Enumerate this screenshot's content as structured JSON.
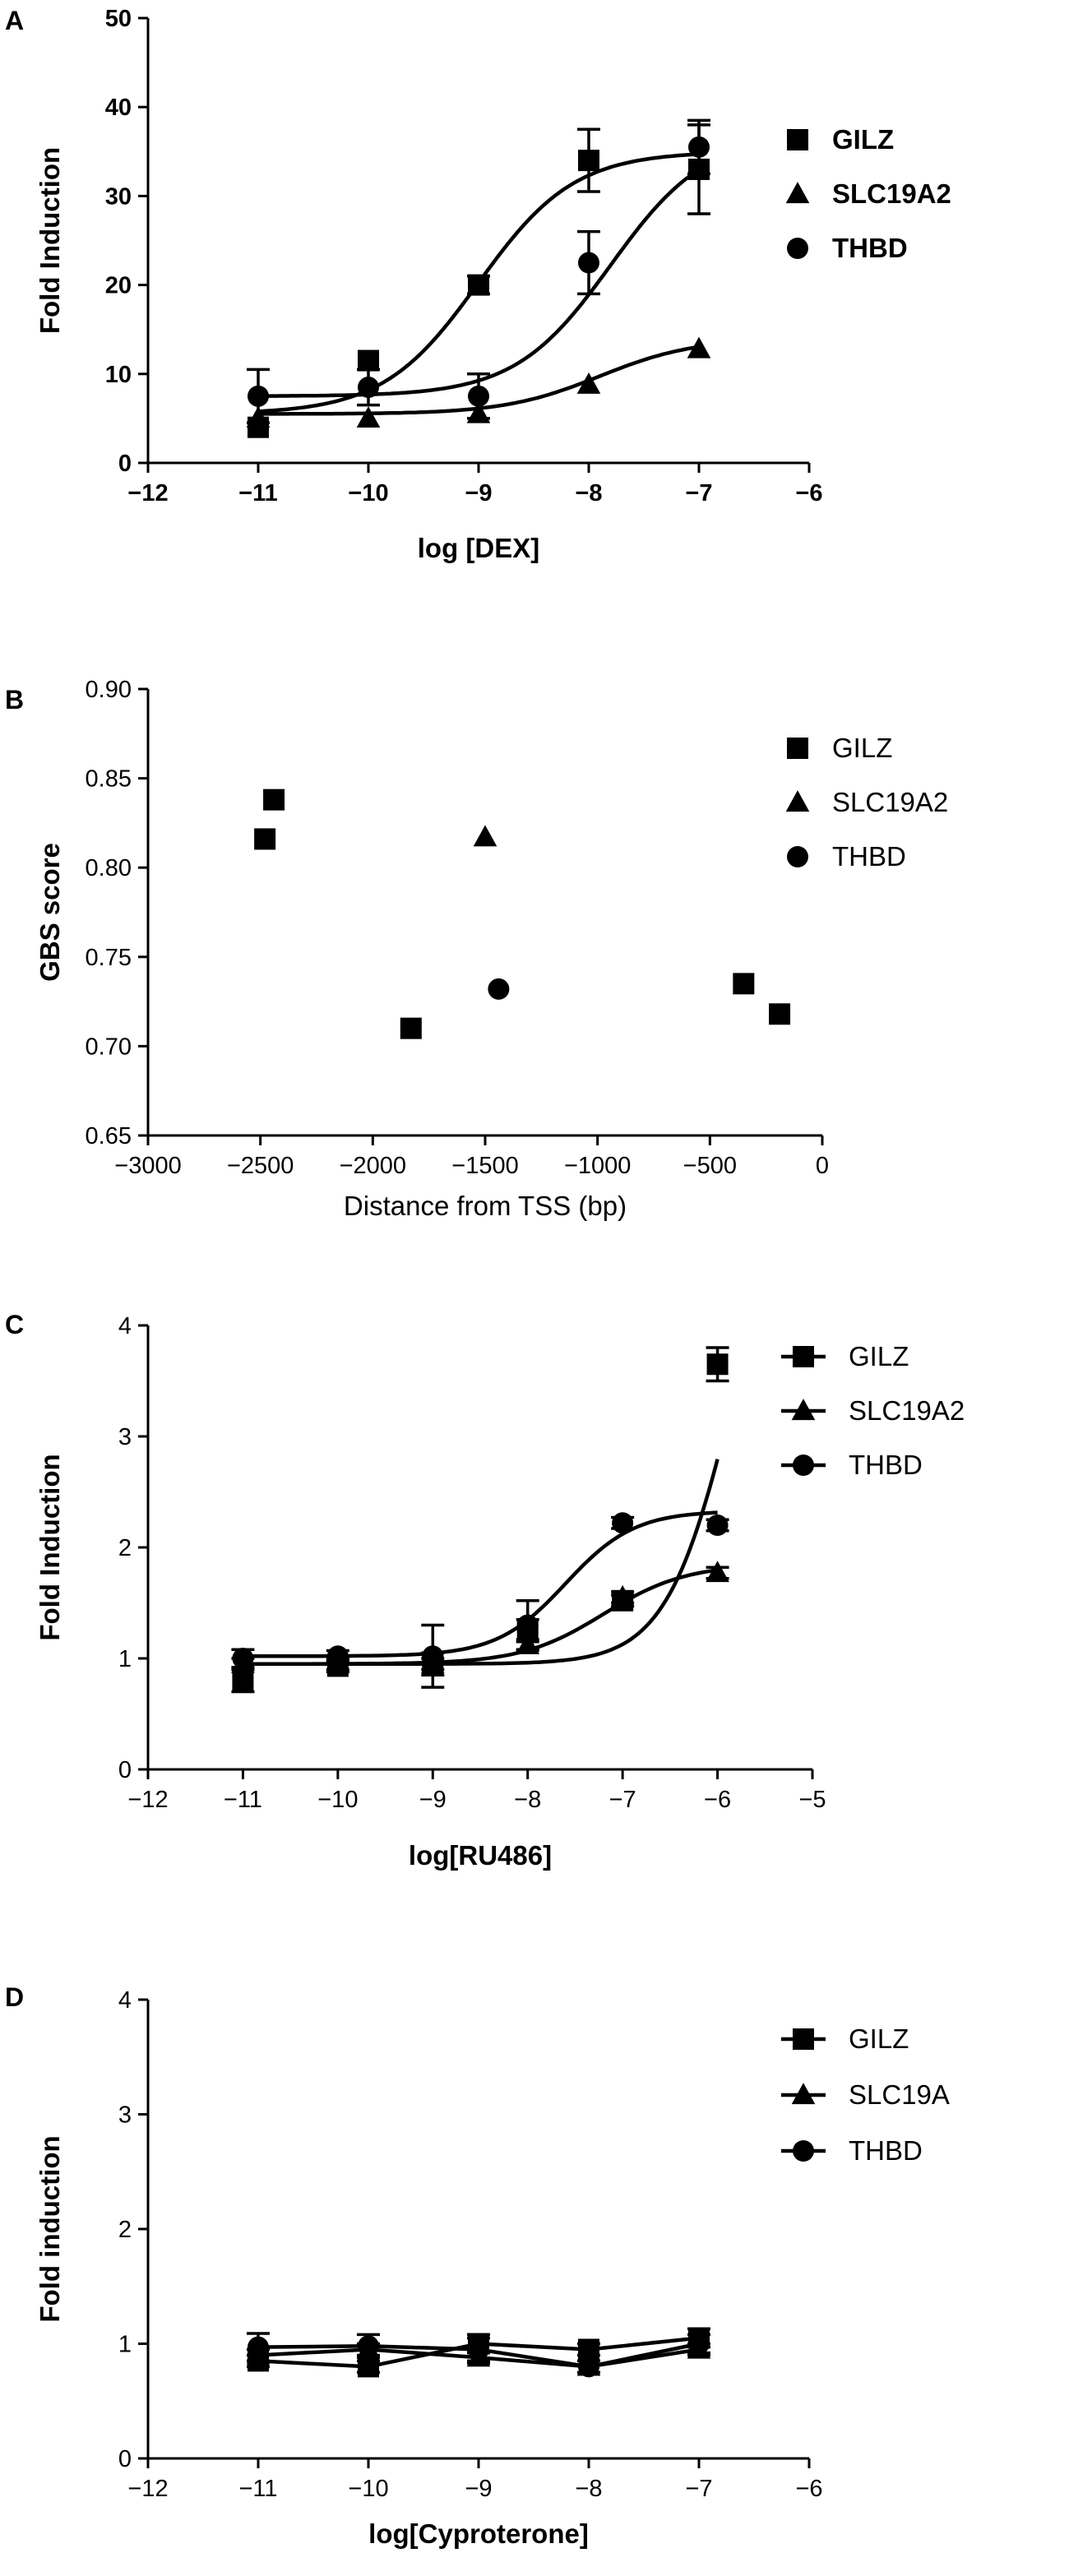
{
  "figure": {
    "panels": [
      "A",
      "B",
      "C",
      "D"
    ]
  },
  "chart_data": [
    {
      "panel": "A",
      "type": "line",
      "title": "",
      "xlabel": "log [DEX]",
      "ylabel": "Fold Induction",
      "xlim": [
        -12,
        -6
      ],
      "ylim": [
        0,
        50
      ],
      "xticks": [
        -12,
        -11,
        -10,
        -9,
        -8,
        -7,
        -6
      ],
      "yticks": [
        0,
        10,
        20,
        30,
        40,
        50
      ],
      "x": [
        -11,
        -10,
        -9,
        -8,
        -7
      ],
      "bold": true,
      "legend": "right",
      "series": [
        {
          "name": "GILZ",
          "marker": "square",
          "values": [
            4,
            11.5,
            20,
            34,
            33
          ],
          "errors": [
            0,
            0,
            1,
            3.5,
            5
          ],
          "curve": {
            "bottom": 5.5,
            "top": 35,
            "logec50": -9.0,
            "hill": 1
          }
        },
        {
          "name": "SLC19A2",
          "marker": "triangle",
          "values": [
            5,
            5,
            5.5,
            8.8,
            12.8
          ],
          "errors": [
            0,
            0,
            0,
            0,
            0
          ],
          "curve": {
            "bottom": 5.5,
            "top": 14,
            "logec50": -7.9,
            "hill": 1
          }
        },
        {
          "name": "THBD",
          "marker": "circle",
          "values": [
            7.5,
            8.5,
            7.5,
            22.5,
            35.5
          ],
          "errors": [
            3,
            2,
            2.5,
            3.5,
            3
          ],
          "curve": {
            "bottom": 7.5,
            "top": 37,
            "logec50": -7.8,
            "hill": 1
          }
        }
      ]
    },
    {
      "panel": "B",
      "type": "scatter",
      "title": "",
      "xlabel": "Distance from TSS (bp)",
      "ylabel": "GBS score",
      "xlim": [
        -3000,
        0
      ],
      "ylim": [
        0.65,
        0.9
      ],
      "xticks": [
        -3000,
        -2500,
        -2000,
        -1500,
        -1000,
        -500,
        0
      ],
      "yticks": [
        0.65,
        0.7,
        0.75,
        0.8,
        0.85,
        0.9
      ],
      "ytick_labels": [
        "0.65",
        "0.70",
        "0.75",
        "0.80",
        "0.85",
        "0.90"
      ],
      "bold": false,
      "legend": "right",
      "series": [
        {
          "name": "GILZ",
          "marker": "square",
          "points": [
            [
              -2480,
              0.816
            ],
            [
              -2440,
              0.838
            ],
            [
              -1830,
              0.71
            ],
            [
              -350,
              0.735
            ],
            [
              -190,
              0.718
            ]
          ]
        },
        {
          "name": "SLC19A2",
          "marker": "triangle",
          "points": [
            [
              -1500,
              0.817
            ]
          ]
        },
        {
          "name": "THBD",
          "marker": "circle",
          "points": [
            [
              -1440,
              0.732
            ]
          ]
        }
      ]
    },
    {
      "panel": "C",
      "type": "line",
      "title": "",
      "xlabel": "log[RU486]",
      "ylabel": "Fold Induction",
      "xlim": [
        -12,
        -5
      ],
      "ylim": [
        0,
        4
      ],
      "xticks": [
        -12,
        -11,
        -10,
        -9,
        -8,
        -7,
        -6,
        -5
      ],
      "yticks": [
        0,
        1,
        2,
        3,
        4
      ],
      "x": [
        -11,
        -10,
        -9,
        -8,
        -7,
        -6
      ],
      "bold": false,
      "legend": "right",
      "legend_lines": true,
      "series": [
        {
          "name": "GILZ",
          "marker": "square",
          "values": [
            0.8,
            0.93,
            0.95,
            1.25,
            1.52,
            3.65
          ],
          "errors": [
            0.1,
            0.05,
            0.1,
            0.1,
            0.05,
            0.15
          ],
          "curve": {
            "bottom": 0.95,
            "top": 6.0,
            "logec50": -5.8,
            "hill": 1.2
          }
        },
        {
          "name": "SLC19A2",
          "marker": "triangle",
          "values": [
            0.95,
            0.95,
            0.95,
            1.12,
            1.55,
            1.77
          ],
          "errors": [
            0.05,
            0.05,
            0.05,
            0.05,
            0.05,
            0.05
          ],
          "curve": {
            "bottom": 0.95,
            "top": 1.85,
            "logec50": -7.2,
            "hill": 1.0
          }
        },
        {
          "name": "THBD",
          "marker": "circle",
          "values": [
            1.0,
            1.02,
            1.02,
            1.3,
            2.22,
            2.2
          ],
          "errors": [
            0.08,
            0.05,
            0.28,
            0.22,
            0.05,
            0.05
          ],
          "curve": {
            "bottom": 1.02,
            "top": 2.33,
            "logec50": -7.6,
            "hill": 1.2
          }
        }
      ]
    },
    {
      "panel": "D",
      "type": "line",
      "title": "",
      "xlabel": "log[Cyproterone]",
      "ylabel": "Fold induction",
      "xlim": [
        -12,
        -6
      ],
      "ylim": [
        0,
        4
      ],
      "xticks": [
        -12,
        -11,
        -10,
        -9,
        -8,
        -7,
        -6
      ],
      "yticks": [
        0,
        1,
        2,
        3,
        4
      ],
      "x": [
        -11,
        -10,
        -9,
        -8,
        -7
      ],
      "bold": false,
      "legend": "right",
      "legend_lines": true,
      "series": [
        {
          "name": "GILZ",
          "marker": "square",
          "values": [
            0.85,
            0.8,
            1.0,
            0.95,
            1.05
          ],
          "errors": [
            0.05,
            0.05,
            0.08,
            0.05,
            0.08
          ],
          "connect": true
        },
        {
          "name": "SLC19A",
          "marker": "triangle",
          "values": [
            0.9,
            0.95,
            0.88,
            0.8,
            0.95
          ],
          "errors": [
            0.05,
            0.05,
            0.05,
            0.05,
            0.05
          ],
          "connect": true
        },
        {
          "name": "THBD",
          "marker": "circle",
          "values": [
            0.97,
            0.98,
            0.95,
            0.8,
            1.0
          ],
          "errors": [
            0.12,
            0.1,
            0.1,
            0.05,
            0.08
          ],
          "connect": true
        }
      ]
    }
  ]
}
